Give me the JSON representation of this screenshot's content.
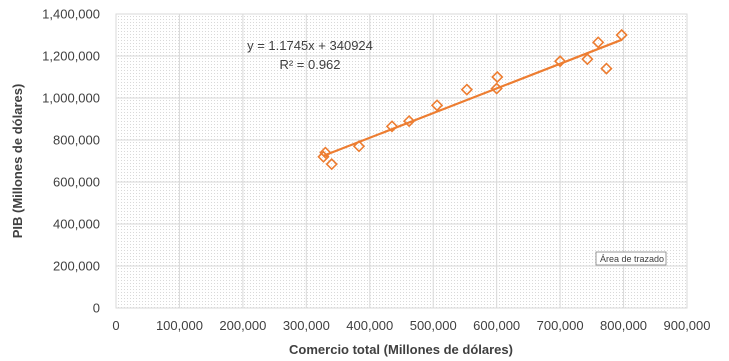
{
  "chart_data": {
    "type": "scatter",
    "xlabel": "Comercio total (Millones de dólares)",
    "ylabel": "PIB (Millones de dólares)",
    "xlim": [
      0,
      900000
    ],
    "ylim": [
      0,
      1400000
    ],
    "x_ticks": [
      0,
      100000,
      200000,
      300000,
      400000,
      500000,
      600000,
      700000,
      800000,
      900000
    ],
    "x_tick_labels": [
      "0",
      "100,000",
      "200,000",
      "300,000",
      "400,000",
      "500,000",
      "600,000",
      "700,000",
      "800,000",
      "900,000"
    ],
    "y_ticks": [
      0,
      200000,
      400000,
      600000,
      800000,
      1000000,
      1200000,
      1400000
    ],
    "y_tick_labels": [
      "0",
      "200,000",
      "400,000",
      "600,000",
      "800,000",
      "1,000,000",
      "1,200,000",
      "1,400,000"
    ],
    "grid": true,
    "marker": "diamond-open",
    "color": "#ED7D31",
    "series": [
      {
        "x": [
          327000,
          330000,
          340000,
          383000,
          435000,
          462000,
          506000,
          553000,
          600000,
          601000,
          700000,
          743000,
          760000,
          773000,
          797000
        ],
        "y": [
          720000,
          740000,
          685000,
          770000,
          865000,
          890000,
          965000,
          1040000,
          1045000,
          1100000,
          1175000,
          1185000,
          1265000,
          1140000,
          1300000
        ]
      }
    ],
    "trendline": {
      "type": "linear",
      "slope": 1.1745,
      "intercept": 340924,
      "x_range": [
        327000,
        797000
      ],
      "equation_text": "y = 1.1745x + 340924",
      "r2_text": "R² = 0.962"
    },
    "annotations": [
      "Área de trazado"
    ]
  }
}
